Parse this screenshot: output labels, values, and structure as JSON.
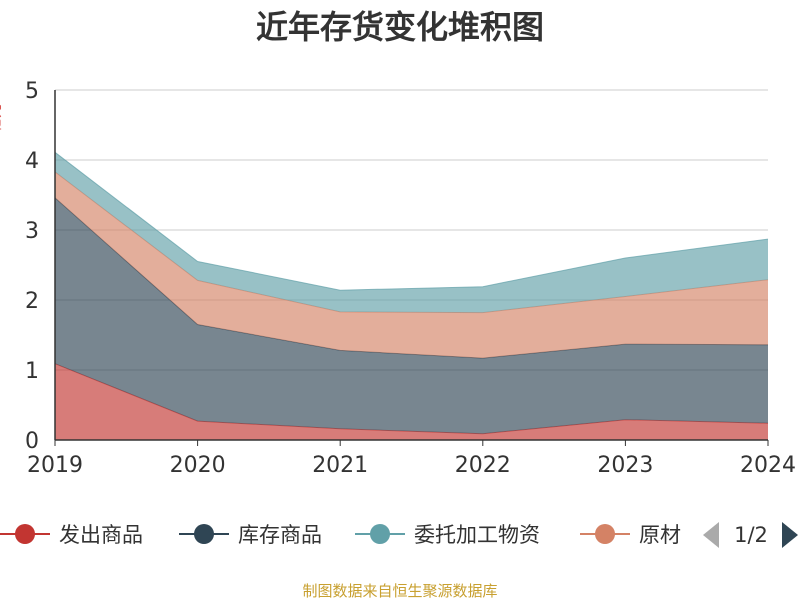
{
  "chart_data": {
    "type": "area",
    "stacked": true,
    "title": "近年存货变化堆积图",
    "ylabel": "亿元",
    "x": [
      "2019",
      "2020",
      "2021",
      "2022",
      "2023",
      "2024"
    ],
    "ylim": [
      0,
      5
    ],
    "yticks": [
      "0",
      "1",
      "2",
      "3",
      "4",
      "5"
    ],
    "grid": true,
    "legend_position": "bottom",
    "series": [
      {
        "name": "发出商品",
        "values": [
          1.09,
          0.27,
          0.16,
          0.09,
          0.29,
          0.24
        ],
        "color": "#c23531"
      },
      {
        "name": "库存商品",
        "values": [
          2.37,
          1.38,
          1.12,
          1.08,
          1.08,
          1.12
        ],
        "color": "#2f4554"
      },
      {
        "name": "原材料",
        "values": [
          0.37,
          0.63,
          0.55,
          0.65,
          0.68,
          0.93
        ],
        "color": "#d48265"
      },
      {
        "name": "委托加工物资",
        "values": [
          0.28,
          0.27,
          0.31,
          0.37,
          0.55,
          0.58
        ],
        "color": "#61a0a8"
      }
    ]
  },
  "legend": {
    "items": [
      {
        "label": "发出商品",
        "color": "#c23531"
      },
      {
        "label": "库存商品",
        "color": "#2f4554"
      },
      {
        "label": "委托加工物资",
        "color": "#61a0a8"
      },
      {
        "label": "原材",
        "color": "#d48265"
      }
    ],
    "page_indicator": "1/2",
    "prev_color": "#aaaaaa",
    "next_color": "#2f4554"
  },
  "footer": {
    "source": "制图数据来自恒生聚源数据库"
  }
}
